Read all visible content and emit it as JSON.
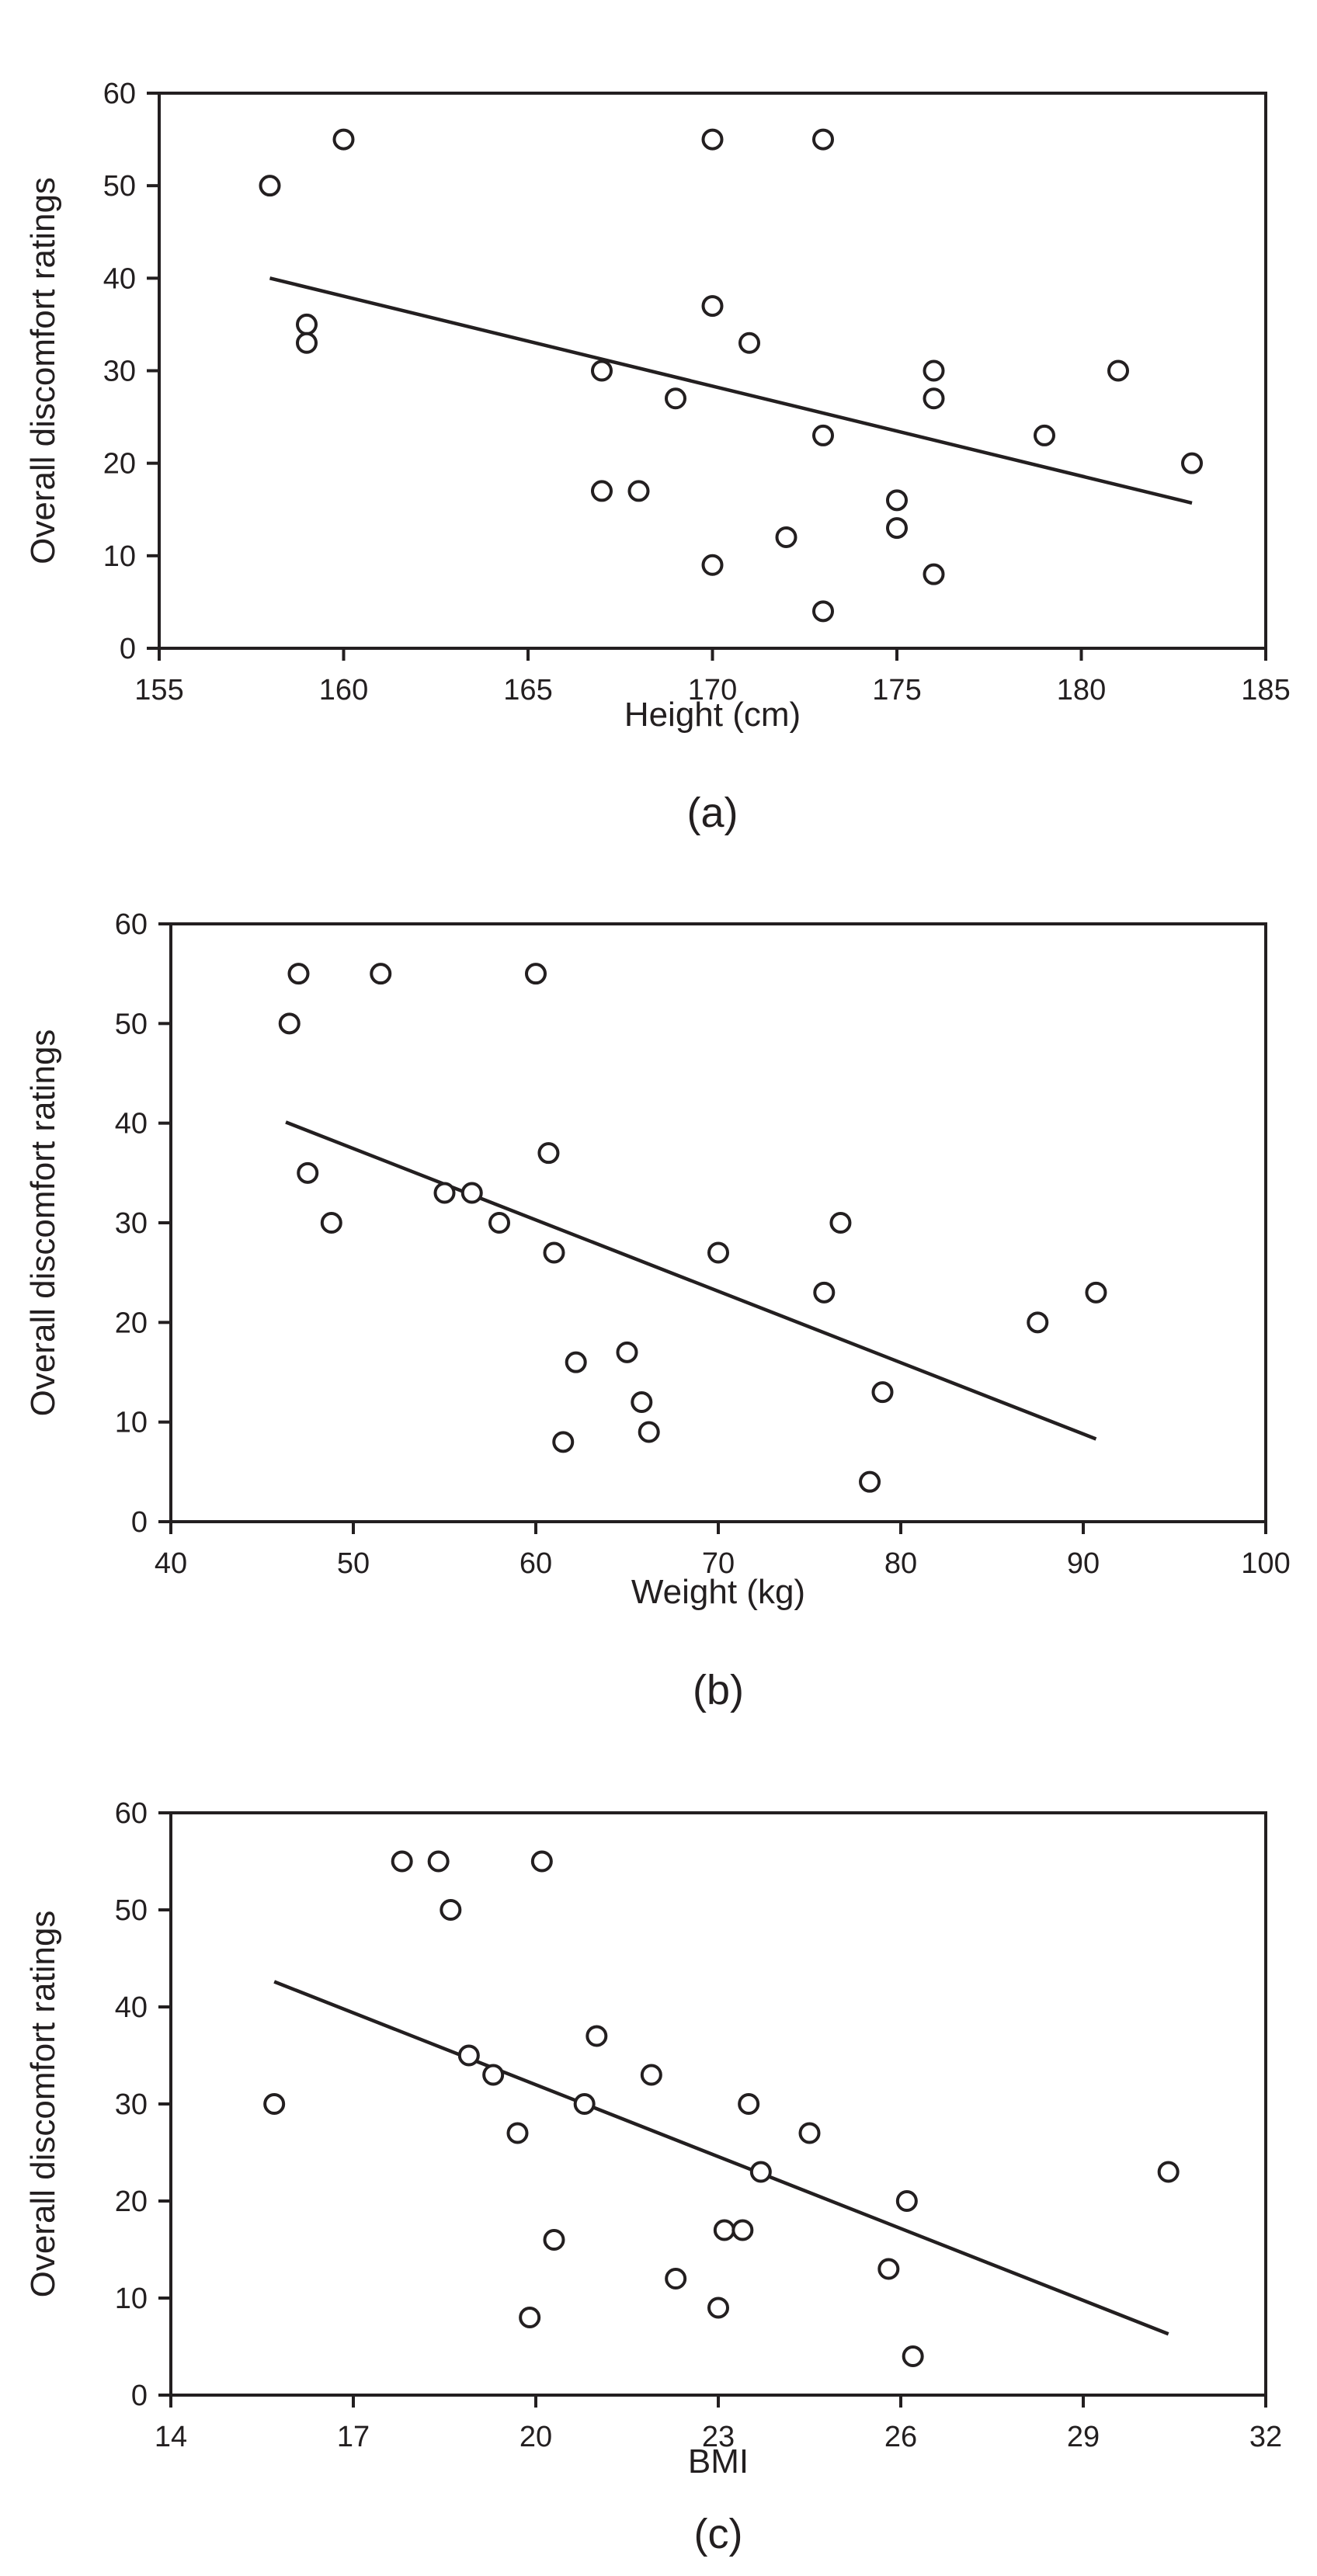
{
  "chart_data": [
    {
      "type": "scatter",
      "panel_label": "(a)",
      "xlabel": "Height (cm)",
      "ylabel": "Overall discomfort ratings",
      "xlim": [
        155,
        185
      ],
      "ylim": [
        0,
        60
      ],
      "xticks": [
        155,
        160,
        165,
        170,
        175,
        180,
        185
      ],
      "yticks": [
        0,
        10,
        20,
        30,
        40,
        50,
        60
      ],
      "grid": false,
      "points": [
        [
          158,
          50
        ],
        [
          159,
          35
        ],
        [
          159,
          33
        ],
        [
          160,
          55
        ],
        [
          167,
          30
        ],
        [
          167,
          17
        ],
        [
          168,
          17
        ],
        [
          169,
          27
        ],
        [
          170,
          55
        ],
        [
          170,
          37
        ],
        [
          170,
          9
        ],
        [
          171,
          33
        ],
        [
          172,
          12
        ],
        [
          173,
          55
        ],
        [
          173,
          23
        ],
        [
          173,
          4
        ],
        [
          175,
          16
        ],
        [
          175,
          13
        ],
        [
          176,
          30
        ],
        [
          176,
          27
        ],
        [
          176,
          8
        ],
        [
          179,
          23
        ],
        [
          181,
          30
        ],
        [
          183,
          20
        ]
      ],
      "trendline": [
        [
          158,
          40
        ],
        [
          183,
          15.7
        ]
      ]
    },
    {
      "type": "scatter",
      "panel_label": "(b)",
      "xlabel": "Weight (kg)",
      "ylabel": "Overall discomfort ratings",
      "xlim": [
        40,
        100
      ],
      "ylim": [
        0,
        60
      ],
      "xticks": [
        40,
        50,
        60,
        70,
        80,
        90,
        100
      ],
      "yticks": [
        0,
        10,
        20,
        30,
        40,
        50,
        60
      ],
      "grid": false,
      "points": [
        [
          46.5,
          50
        ],
        [
          47,
          55
        ],
        [
          47.5,
          35
        ],
        [
          48.8,
          30
        ],
        [
          51.5,
          55
        ],
        [
          55,
          33
        ],
        [
          56.5,
          33
        ],
        [
          58,
          30
        ],
        [
          60,
          55
        ],
        [
          60.7,
          37
        ],
        [
          61,
          27
        ],
        [
          61.5,
          8
        ],
        [
          62.2,
          16
        ],
        [
          65,
          17
        ],
        [
          65.8,
          12
        ],
        [
          66.2,
          9
        ],
        [
          70,
          27
        ],
        [
          75.8,
          23
        ],
        [
          76.7,
          30
        ],
        [
          78.3,
          4
        ],
        [
          79,
          13
        ],
        [
          87.5,
          20
        ],
        [
          90.7,
          23
        ]
      ],
      "trendline": [
        [
          46.3,
          40.1
        ],
        [
          90.7,
          8.3
        ]
      ]
    },
    {
      "type": "scatter",
      "panel_label": "(c)",
      "xlabel": "BMI",
      "ylabel": "Overall discomfort ratings",
      "xlim": [
        14,
        32
      ],
      "ylim": [
        0,
        60
      ],
      "xticks": [
        14,
        17,
        20,
        23,
        26,
        29,
        32
      ],
      "yticks": [
        0,
        10,
        20,
        30,
        40,
        50,
        60
      ],
      "grid": false,
      "points": [
        [
          15.7,
          30
        ],
        [
          17.8,
          55
        ],
        [
          18.4,
          55
        ],
        [
          18.6,
          50
        ],
        [
          18.9,
          35
        ],
        [
          19.3,
          33
        ],
        [
          19.7,
          27
        ],
        [
          19.9,
          8
        ],
        [
          20.1,
          55
        ],
        [
          20.3,
          16
        ],
        [
          20.8,
          30
        ],
        [
          21,
          37
        ],
        [
          21.9,
          33
        ],
        [
          22.3,
          12
        ],
        [
          23,
          9
        ],
        [
          23.1,
          17
        ],
        [
          23.4,
          17
        ],
        [
          23.5,
          30
        ],
        [
          23.7,
          23
        ],
        [
          24.5,
          27
        ],
        [
          25.8,
          13
        ],
        [
          26.1,
          20
        ],
        [
          26.2,
          4
        ],
        [
          30.4,
          23
        ]
      ],
      "trendline": [
        [
          15.7,
          42.6
        ],
        [
          30.4,
          6.3
        ]
      ]
    }
  ]
}
